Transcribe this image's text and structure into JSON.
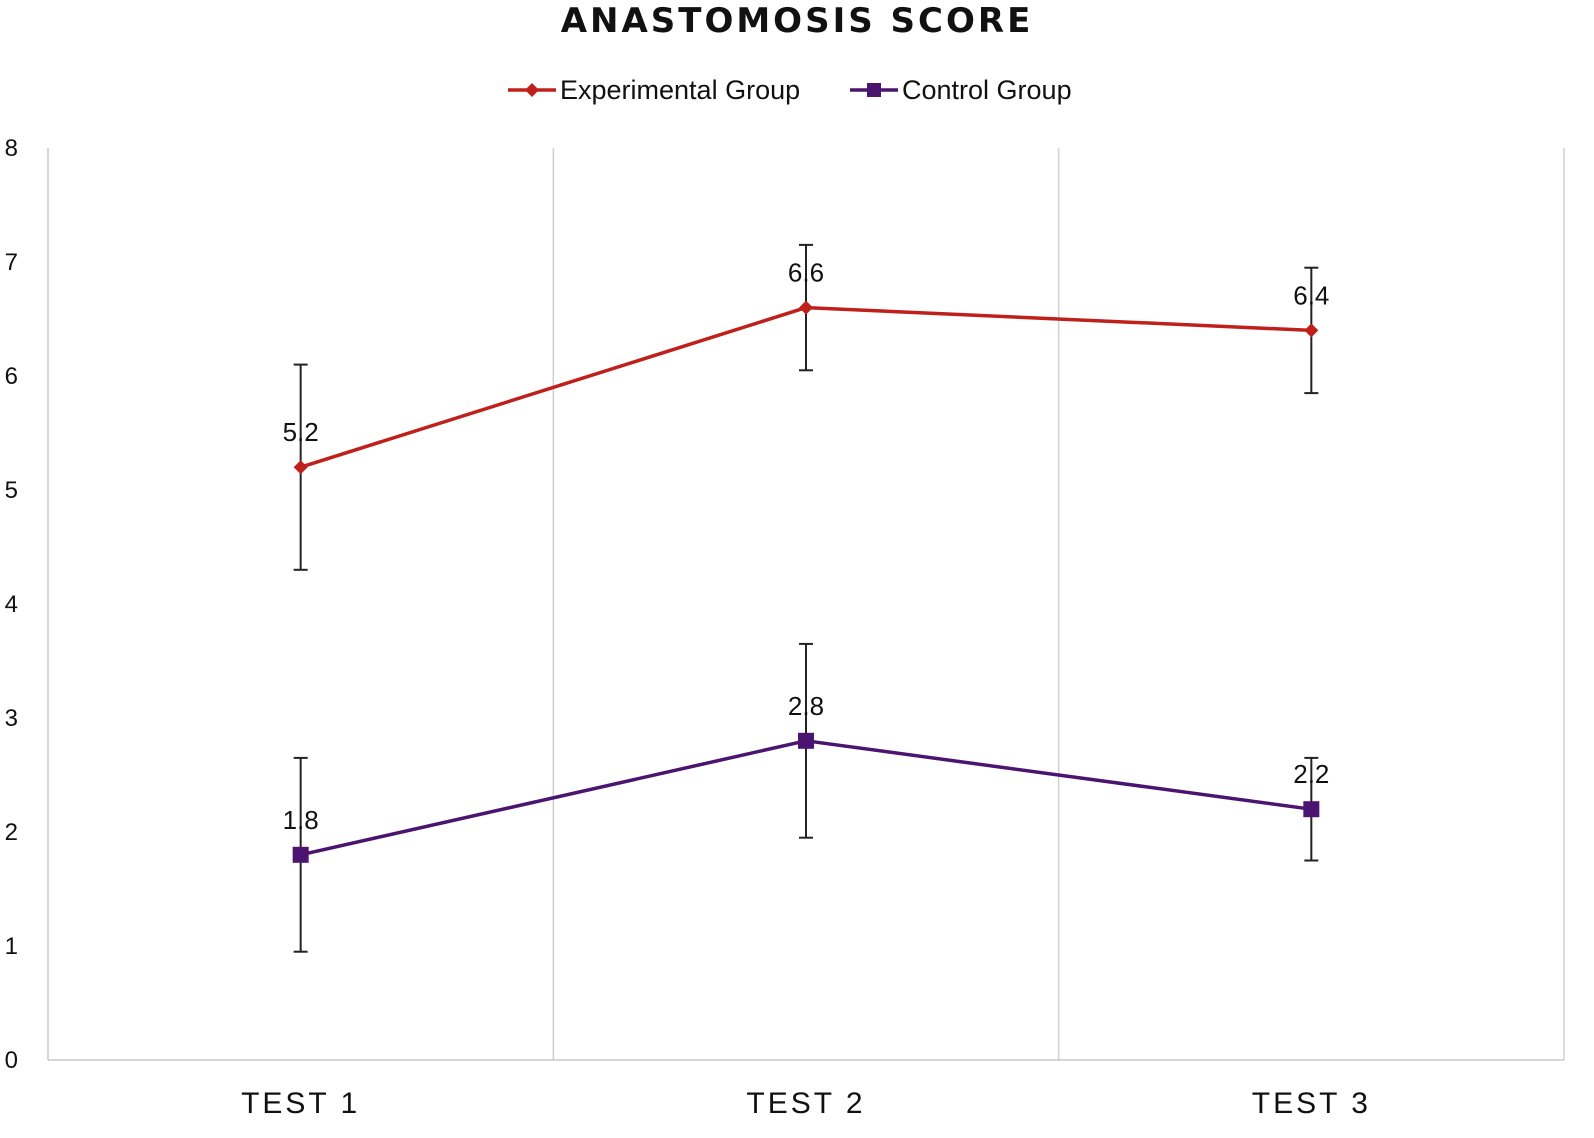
{
  "chart_data": {
    "type": "line",
    "title": "ANASTOMOSIS SCORE",
    "xlabel": "",
    "ylabel": "",
    "categories": [
      "TEST 1",
      "TEST 2",
      "TEST 3"
    ],
    "ylim": [
      0,
      8
    ],
    "yticks": [
      "0",
      "1",
      "2",
      "3",
      "4",
      "5",
      "6",
      "7",
      "8"
    ],
    "grid": "vertical category separators",
    "legend": "top-center",
    "series": [
      {
        "name": "Experimental Group",
        "color": "#c0201c",
        "marker": "diamond",
        "values": [
          5.2,
          6.6,
          6.4
        ],
        "labels": [
          "5.2",
          "6.6",
          "6.4"
        ],
        "error_low": [
          4.3,
          6.05,
          5.85
        ],
        "error_high": [
          6.1,
          7.15,
          6.95
        ]
      },
      {
        "name": "Control Group",
        "color": "#4a1470",
        "marker": "square",
        "values": [
          1.8,
          2.8,
          2.2
        ],
        "labels": [
          "1.8",
          "2.8",
          "2.2"
        ],
        "error_low": [
          0.95,
          1.95,
          1.75
        ],
        "error_high": [
          2.65,
          3.65,
          2.65
        ]
      }
    ]
  }
}
